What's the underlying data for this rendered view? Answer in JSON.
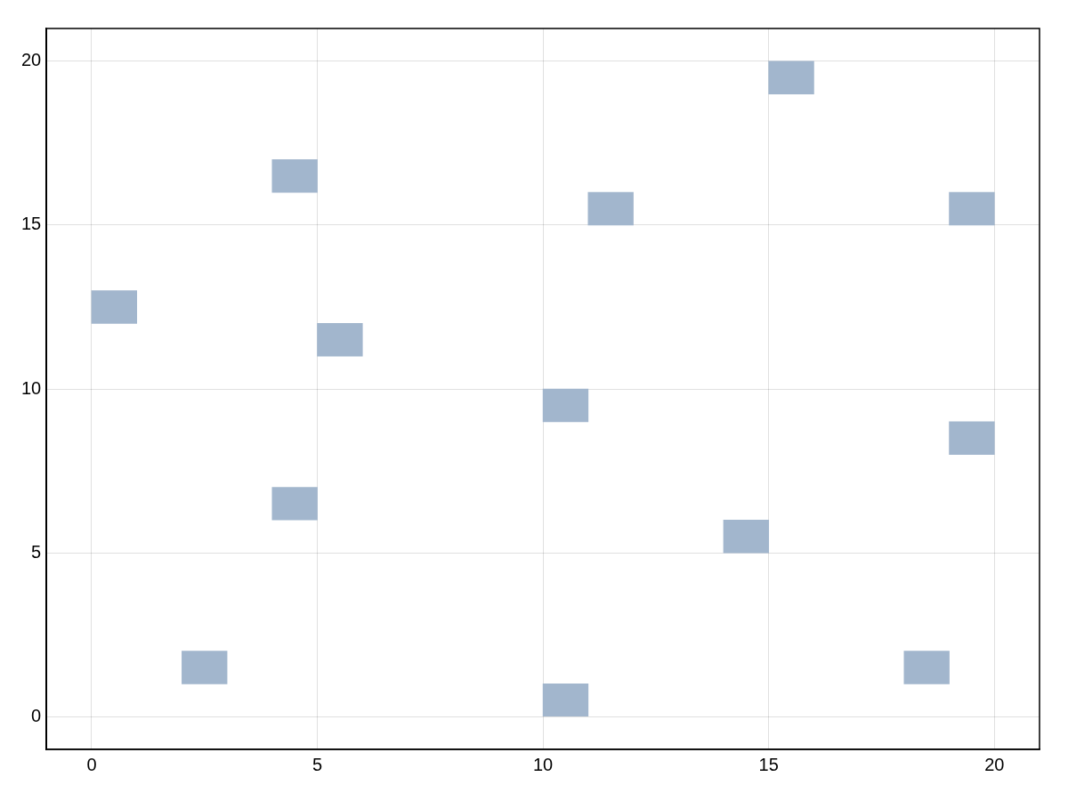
{
  "chart_data": {
    "type": "bar",
    "series": [
      {
        "color": "#a2b6cd",
        "x": [
          0.5,
          2.5,
          4.5,
          5.5,
          10.5,
          11.5,
          14.5,
          15.5,
          18.5,
          19.5
        ],
        "base": [
          12,
          1,
          6,
          11,
          0,
          15,
          5,
          19,
          1,
          8
        ],
        "values": [
          1,
          1,
          1,
          1,
          1,
          1,
          1,
          1,
          1,
          1
        ]
      },
      {
        "color": "#a2b6cd",
        "x": [
          4.5,
          10.5,
          19.5
        ],
        "base": [
          16,
          9,
          15
        ],
        "values": [
          1,
          1,
          1
        ]
      }
    ],
    "xlim": [
      -1,
      21
    ],
    "xticks": [
      0,
      5,
      10,
      15,
      20
    ],
    "ylim": [
      -1,
      21
    ],
    "yticks": [
      0,
      5,
      10,
      15,
      20
    ],
    "grid": true
  }
}
